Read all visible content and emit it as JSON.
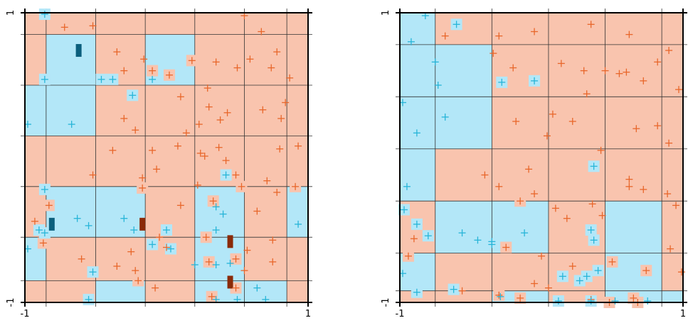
{
  "colors": {
    "region_a": "#f9c4ae",
    "region_b": "#b3e7f8",
    "marker_a": "#e8672b",
    "marker_b": "#27b5d8",
    "dark_a": "#8a2a08",
    "dark_b": "#0b5f7d",
    "grid": "#333333",
    "frame": "#000000"
  },
  "chart_data": [
    {
      "type": "scatter",
      "x_ticks": [
        "-1",
        "1"
      ],
      "y_ticks": [
        "1",
        "-1"
      ],
      "xlim": [
        -1,
        1
      ],
      "ylim": [
        -1,
        1
      ],
      "grid": true,
      "grid_x": [
        -1,
        -0.85,
        -0.5,
        -0.15,
        0.2,
        0.55,
        0.85,
        1
      ],
      "grid_y": [
        1,
        0.85,
        0.5,
        0.15,
        -0.2,
        -0.55,
        -0.85,
        -1
      ],
      "cells": [
        [
          0,
          0,
          0,
          0,
          0,
          0,
          0
        ],
        [
          0,
          1,
          0,
          1,
          0,
          0,
          0
        ],
        [
          1,
          1,
          0,
          0,
          0,
          0,
          0
        ],
        [
          0,
          0,
          0,
          0,
          0,
          0,
          0
        ],
        [
          0,
          1,
          1,
          0,
          1,
          0,
          1
        ],
        [
          1,
          0,
          0,
          0,
          1,
          0,
          0
        ],
        [
          0,
          0,
          1,
          0,
          1,
          1,
          0
        ]
      ],
      "points_a": [
        [
          -0.72,
          0.9
        ],
        [
          -0.52,
          0.91
        ],
        [
          -0.35,
          0.73
        ],
        [
          -0.16,
          0.68
        ],
        [
          0.02,
          0.57
        ],
        [
          0.18,
          0.67
        ],
        [
          0.35,
          0.66
        ],
        [
          0.5,
          0.62
        ],
        [
          0.55,
          0.98
        ],
        [
          0.67,
          0.87
        ],
        [
          0.78,
          0.73
        ],
        [
          0.87,
          0.55
        ],
        [
          -0.3,
          0.6
        ],
        [
          -0.1,
          0.6
        ],
        [
          0.1,
          0.42
        ],
        [
          0.3,
          0.35
        ],
        [
          0.43,
          0.31
        ],
        [
          0.59,
          0.68
        ],
        [
          0.74,
          0.62
        ],
        [
          0.14,
          0.17
        ],
        [
          -0.22,
          0.19
        ],
        [
          0.23,
          0.23
        ],
        [
          -0.1,
          0.05
        ],
        [
          -0.3,
          0.27
        ],
        [
          0.29,
          0.48
        ],
        [
          0.08,
          0.08
        ],
        [
          0.68,
          0.33
        ],
        [
          0.81,
          0.27
        ],
        [
          0.84,
          0.38
        ],
        [
          0.38,
          0.26
        ],
        [
          0.8,
          0.06
        ],
        [
          -0.52,
          -0.12
        ],
        [
          -0.17,
          -0.14
        ],
        [
          -0.17,
          -0.21
        ],
        [
          -0.38,
          0.05
        ],
        [
          0.24,
          0.03
        ],
        [
          -0.07,
          -0.08
        ],
        [
          0.49,
          -0.12
        ],
        [
          0.53,
          -0.2
        ],
        [
          0.71,
          -0.16
        ],
        [
          0.78,
          -0.24
        ],
        [
          0.42,
          -0.02
        ],
        [
          0.91,
          -0.2
        ],
        [
          0.1,
          -0.33
        ],
        [
          0.22,
          -0.19
        ],
        [
          0.33,
          -0.3
        ],
        [
          0.64,
          -0.37
        ],
        [
          0.27,
          0.01
        ],
        [
          0.37,
          0.07
        ],
        [
          0.93,
          0.08
        ],
        [
          -0.83,
          -0.33
        ],
        [
          -0.93,
          -0.44
        ],
        [
          -0.87,
          -0.59
        ],
        [
          0.57,
          -0.64
        ],
        [
          0.3,
          -0.72
        ],
        [
          0.28,
          -0.55
        ],
        [
          0.75,
          -0.57
        ],
        [
          0.75,
          -0.72
        ],
        [
          0.49,
          -0.7
        ],
        [
          -0.6,
          -0.7
        ],
        [
          -0.35,
          -0.75
        ],
        [
          -0.25,
          -0.65
        ],
        [
          -0.22,
          -0.78
        ],
        [
          -0.05,
          -0.55
        ],
        [
          0.0,
          -0.62
        ],
        [
          0.55,
          -0.78
        ],
        [
          0.32,
          -0.96
        ],
        [
          0.49,
          -0.9
        ],
        [
          -0.08,
          -0.9
        ],
        [
          -0.2,
          -0.85
        ]
      ],
      "points_b": [
        [
          -0.86,
          0.99
        ],
        [
          -0.86,
          0.54
        ],
        [
          -0.46,
          0.54
        ],
        [
          -0.38,
          0.54
        ],
        [
          -0.24,
          0.43
        ],
        [
          -0.1,
          0.54
        ],
        [
          -0.98,
          0.23
        ],
        [
          -0.67,
          0.23
        ],
        [
          -0.86,
          -0.22
        ],
        [
          -0.63,
          -0.42
        ],
        [
          -0.55,
          -0.47
        ],
        [
          -0.3,
          -0.42
        ],
        [
          -0.23,
          -0.5
        ],
        [
          -0.1,
          -0.6
        ],
        [
          -0.9,
          -0.5
        ],
        [
          -0.86,
          -0.52
        ],
        [
          -0.98,
          -0.63
        ],
        [
          -0.52,
          -0.79
        ],
        [
          0.03,
          -0.63
        ],
        [
          0.35,
          -0.34
        ],
        [
          0.4,
          -0.39
        ],
        [
          0.35,
          -0.5
        ],
        [
          0.0,
          -0.5
        ],
        [
          0.2,
          -0.74
        ],
        [
          0.35,
          -0.74
        ],
        [
          0.45,
          -0.73
        ],
        [
          0.64,
          -0.9
        ],
        [
          0.35,
          -0.98
        ],
        [
          0.5,
          -0.98
        ],
        [
          0.7,
          -0.98
        ],
        [
          -0.55,
          -0.98
        ],
        [
          0.42,
          -0.12
        ],
        [
          0.93,
          -0.46
        ]
      ],
      "dark_a": [
        [
          -0.17,
          -0.46
        ],
        [
          0.45,
          -0.58
        ],
        [
          0.45,
          -0.86
        ]
      ],
      "dark_b": [
        [
          -0.62,
          0.74
        ],
        [
          -0.81,
          -0.46
        ]
      ]
    },
    {
      "type": "scatter",
      "x_ticks": [
        "-1",
        "1"
      ],
      "y_ticks": [
        "1",
        "-1"
      ],
      "xlim": [
        -1,
        1
      ],
      "ylim": [
        -1,
        1
      ],
      "grid": true,
      "grid_x": [
        -1,
        -0.75,
        -0.35,
        0.05,
        0.45,
        0.85,
        1
      ],
      "grid_y": [
        1,
        0.78,
        0.42,
        0.06,
        -0.3,
        -0.66,
        -0.92,
        -1
      ],
      "cells": [
        [
          1,
          0,
          0,
          0,
          0,
          0
        ],
        [
          1,
          1,
          0,
          0,
          0,
          0
        ],
        [
          1,
          1,
          0,
          0,
          0,
          0
        ],
        [
          1,
          0,
          0,
          0,
          0,
          0
        ],
        [
          0,
          1,
          1,
          0,
          1,
          0
        ],
        [
          1,
          0,
          0,
          0,
          1,
          0
        ],
        [
          0,
          0,
          1,
          0,
          1,
          1
        ]
      ],
      "points_a": [
        [
          -0.68,
          0.84
        ],
        [
          -0.3,
          0.84
        ],
        [
          -0.05,
          0.87
        ],
        [
          0.35,
          0.92
        ],
        [
          0.62,
          0.85
        ],
        [
          0.9,
          0.74
        ],
        [
          -0.34,
          0.72
        ],
        [
          -0.2,
          0.62
        ],
        [
          0.14,
          0.65
        ],
        [
          0.3,
          0.6
        ],
        [
          0.45,
          0.6
        ],
        [
          0.6,
          0.59
        ],
        [
          0.82,
          0.66
        ],
        [
          0.97,
          0.47
        ],
        [
          -0.18,
          0.25
        ],
        [
          0.08,
          0.3
        ],
        [
          0.22,
          0.25
        ],
        [
          0.32,
          0.44
        ],
        [
          0.55,
          0.58
        ],
        [
          0.72,
          0.53
        ],
        [
          0.82,
          0.22
        ],
        [
          0.9,
          0.1
        ],
        [
          0.42,
          0.05
        ],
        [
          0.04,
          0.15
        ],
        [
          0.67,
          0.2
        ],
        [
          -0.4,
          -0.12
        ],
        [
          -0.3,
          -0.2
        ],
        [
          -0.15,
          -0.3
        ],
        [
          -0.05,
          -0.25
        ],
        [
          0.1,
          -0.35
        ],
        [
          0.18,
          -0.42
        ],
        [
          0.36,
          -0.32
        ],
        [
          0.43,
          -0.4
        ],
        [
          0.62,
          -0.15
        ],
        [
          0.62,
          -0.2
        ],
        [
          0.72,
          -0.22
        ],
        [
          0.89,
          -0.25
        ],
        [
          0.95,
          -0.33
        ],
        [
          -0.09,
          -0.08
        ],
        [
          -0.9,
          -0.56
        ],
        [
          -0.94,
          -0.68
        ],
        [
          -0.25,
          -0.62
        ],
        [
          0.0,
          -0.68
        ],
        [
          0.22,
          -0.75
        ],
        [
          0.74,
          -0.78
        ],
        [
          0.5,
          -0.72
        ],
        [
          0.91,
          -0.63
        ],
        [
          0.99,
          -0.79
        ],
        [
          -0.56,
          -0.92
        ],
        [
          -0.3,
          -0.95
        ],
        [
          -0.05,
          -0.87
        ],
        [
          0.05,
          -0.9
        ],
        [
          -0.15,
          -0.97
        ],
        [
          0.35,
          -0.98
        ],
        [
          0.48,
          -1.0
        ],
        [
          0.65,
          -0.97
        ],
        [
          0.68,
          -1.0
        ]
      ],
      "points_b": [
        [
          -0.82,
          0.98
        ],
        [
          -0.92,
          0.8
        ],
        [
          -0.6,
          0.92
        ],
        [
          -0.75,
          0.66
        ],
        [
          -0.73,
          0.5
        ],
        [
          -0.98,
          0.38
        ],
        [
          -0.68,
          0.28
        ],
        [
          -0.88,
          0.17
        ],
        [
          -0.95,
          -0.2
        ],
        [
          -0.97,
          -0.36
        ],
        [
          -0.88,
          -0.46
        ],
        [
          -0.8,
          -0.54
        ],
        [
          -0.56,
          -0.52
        ],
        [
          -0.45,
          -0.57
        ],
        [
          -0.35,
          -0.58
        ],
        [
          -0.35,
          -0.6
        ],
        [
          -0.12,
          -0.52
        ],
        [
          0.35,
          -0.5
        ],
        [
          0.37,
          -0.57
        ],
        [
          0.4,
          -0.78
        ],
        [
          0.32,
          -0.82
        ],
        [
          -0.88,
          -0.93
        ],
        [
          -0.62,
          -0.91
        ],
        [
          -0.29,
          -0.96
        ],
        [
          0.15,
          -0.82
        ],
        [
          0.27,
          -0.85
        ],
        [
          0.12,
          -0.99
        ],
        [
          0.35,
          -0.99
        ],
        [
          0.52,
          -0.99
        ],
        [
          0.75,
          -0.99
        ],
        [
          -0.98,
          -0.8
        ],
        [
          -0.05,
          0.53
        ],
        [
          -0.28,
          0.52
        ],
        [
          0.37,
          -0.06
        ]
      ],
      "dark_a": [],
      "dark_b": []
    }
  ]
}
